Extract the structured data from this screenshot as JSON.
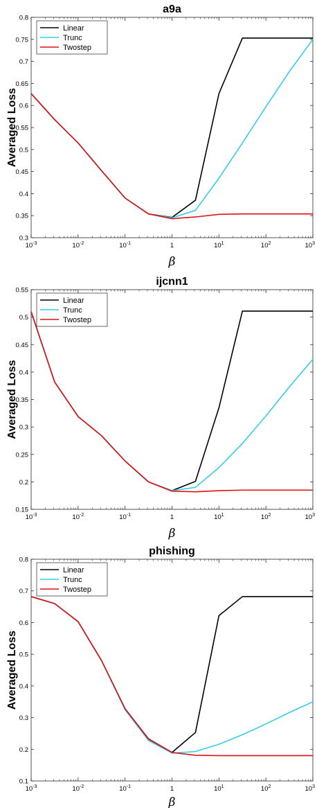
{
  "chart_data": [
    {
      "type": "line",
      "title": "a9a",
      "xlabel": "β",
      "ylabel": "Averaged Loss",
      "x_scale": "log",
      "xlim": [
        0.001,
        1000
      ],
      "ylim": [
        0.3,
        0.8
      ],
      "x_ticks": [
        0.001,
        0.01,
        0.1,
        1,
        10,
        100,
        1000
      ],
      "x_tick_labels": [
        [
          "10",
          "-3"
        ],
        [
          "10",
          "-2"
        ],
        [
          "10",
          "-1"
        ],
        [
          "1",
          ""
        ],
        [
          "10",
          "1"
        ],
        [
          "10",
          "2"
        ],
        [
          "10",
          "3"
        ]
      ],
      "y_ticks": [
        "0.3",
        "0.35",
        "0.4",
        "0.45",
        "0.5",
        "0.55",
        "0.6",
        "0.65",
        "0.7",
        "0.75",
        "0.8"
      ],
      "legend_position": "top-left",
      "series": [
        {
          "name": "Linear",
          "color": "#000000",
          "x": [
            0.001,
            0.00316,
            0.01,
            0.0316,
            0.1,
            0.316,
            1,
            3.16,
            10,
            31.6,
            100,
            316,
            1000
          ],
          "y": [
            0.627,
            0.568,
            0.515,
            0.452,
            0.39,
            0.354,
            0.346,
            0.385,
            0.627,
            0.753,
            0.753,
            0.753,
            0.753
          ]
        },
        {
          "name": "Trunc",
          "color": "#33ccee",
          "x": [
            0.001,
            0.00316,
            0.01,
            0.0316,
            0.1,
            0.316,
            1,
            3.16,
            10,
            31.6,
            100,
            316,
            1000
          ],
          "y": [
            0.627,
            0.568,
            0.515,
            0.452,
            0.39,
            0.354,
            0.345,
            0.362,
            0.435,
            0.515,
            0.597,
            0.677,
            0.75
          ]
        },
        {
          "name": "Twostep",
          "color": "#dd1111",
          "x": [
            0.001,
            0.00316,
            0.01,
            0.0316,
            0.1,
            0.316,
            1,
            3.16,
            10,
            31.6,
            100,
            316,
            1000
          ],
          "y": [
            0.627,
            0.568,
            0.515,
            0.452,
            0.39,
            0.354,
            0.343,
            0.347,
            0.353,
            0.354,
            0.354,
            0.354,
            0.354
          ]
        }
      ]
    },
    {
      "type": "line",
      "title": "ijcnn1",
      "xlabel": "β",
      "ylabel": "Averaged Loss",
      "x_scale": "log",
      "xlim": [
        0.001,
        1000
      ],
      "ylim": [
        0.15,
        0.55
      ],
      "x_ticks": [
        0.001,
        0.01,
        0.1,
        1,
        10,
        100,
        1000
      ],
      "x_tick_labels": [
        [
          "10",
          "-3"
        ],
        [
          "10",
          "-2"
        ],
        [
          "10",
          "-1"
        ],
        [
          "1",
          ""
        ],
        [
          "10",
          "1"
        ],
        [
          "10",
          "2"
        ],
        [
          "10",
          "3"
        ]
      ],
      "y_ticks": [
        "0.15",
        "0.2",
        "0.25",
        "0.3",
        "0.35",
        "0.4",
        "0.45",
        "0.5",
        "0.55"
      ],
      "legend_position": "top-left",
      "series": [
        {
          "name": "Linear",
          "color": "#000000",
          "x": [
            0.001,
            0.00316,
            0.01,
            0.0316,
            0.1,
            0.316,
            1,
            3.16,
            10,
            31.6,
            100,
            316,
            1000
          ],
          "y": [
            0.51,
            0.382,
            0.319,
            0.284,
            0.238,
            0.2,
            0.184,
            0.201,
            0.335,
            0.511,
            0.511,
            0.511,
            0.511
          ]
        },
        {
          "name": "Trunc",
          "color": "#33ccee",
          "x": [
            0.001,
            0.00316,
            0.01,
            0.0316,
            0.1,
            0.316,
            1,
            3.16,
            10,
            31.6,
            100,
            316,
            1000
          ],
          "y": [
            0.51,
            0.382,
            0.319,
            0.284,
            0.238,
            0.2,
            0.184,
            0.19,
            0.226,
            0.27,
            0.32,
            0.373,
            0.423
          ]
        },
        {
          "name": "Twostep",
          "color": "#dd1111",
          "x": [
            0.001,
            0.00316,
            0.01,
            0.0316,
            0.1,
            0.316,
            1,
            3.16,
            10,
            31.6,
            100,
            316,
            1000
          ],
          "y": [
            0.51,
            0.382,
            0.319,
            0.284,
            0.238,
            0.2,
            0.183,
            0.182,
            0.184,
            0.185,
            0.185,
            0.185,
            0.185
          ]
        }
      ]
    },
    {
      "type": "line",
      "title": "phishing",
      "xlabel": "β",
      "ylabel": "Averaged Loss",
      "x_scale": "log",
      "xlim": [
        0.001,
        1000
      ],
      "ylim": [
        0.1,
        0.8
      ],
      "x_ticks": [
        0.001,
        0.01,
        0.1,
        1,
        10,
        100,
        1000
      ],
      "x_tick_labels": [
        [
          "10",
          "-3"
        ],
        [
          "10",
          "-2"
        ],
        [
          "10",
          "-1"
        ],
        [
          "1",
          ""
        ],
        [
          "10",
          "1"
        ],
        [
          "10",
          "2"
        ],
        [
          "10",
          "3"
        ]
      ],
      "y_ticks": [
        "0.1",
        "0.2",
        "0.3",
        "0.4",
        "0.5",
        "0.6",
        "0.7",
        "0.8"
      ],
      "legend_position": "top-left",
      "series": [
        {
          "name": "Linear",
          "color": "#000000",
          "x": [
            0.001,
            0.00316,
            0.01,
            0.0316,
            0.1,
            0.316,
            1,
            3.16,
            10,
            31.6,
            100,
            316,
            1000
          ],
          "y": [
            0.682,
            0.66,
            0.603,
            0.48,
            0.328,
            0.233,
            0.19,
            0.253,
            0.622,
            0.682,
            0.682,
            0.682,
            0.682
          ]
        },
        {
          "name": "Trunc",
          "color": "#33ccee",
          "x": [
            0.001,
            0.00316,
            0.01,
            0.0316,
            0.1,
            0.316,
            1,
            3.16,
            10,
            31.6,
            100,
            316,
            1000
          ],
          "y": [
            0.682,
            0.66,
            0.603,
            0.48,
            0.325,
            0.228,
            0.188,
            0.193,
            0.216,
            0.246,
            0.28,
            0.316,
            0.35
          ]
        },
        {
          "name": "Twostep",
          "color": "#dd1111",
          "x": [
            0.001,
            0.00316,
            0.01,
            0.0316,
            0.1,
            0.316,
            1,
            3.16,
            10,
            31.6,
            100,
            316,
            1000
          ],
          "y": [
            0.682,
            0.66,
            0.603,
            0.48,
            0.328,
            0.232,
            0.19,
            0.181,
            0.18,
            0.18,
            0.18,
            0.18,
            0.18
          ]
        }
      ]
    }
  ]
}
